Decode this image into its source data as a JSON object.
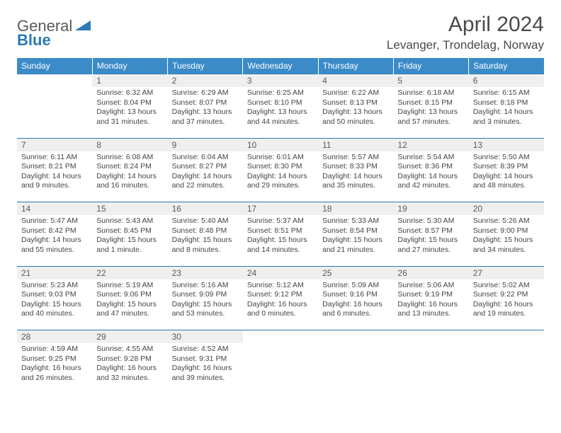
{
  "brand": {
    "text1": "General",
    "text2": "Blue",
    "triangle_color": "#2a7ab8"
  },
  "header": {
    "title": "April 2024",
    "location": "Levanger, Trondelag, Norway"
  },
  "colors": {
    "header_bg": "#3b8bc9",
    "border": "#2a7ab8",
    "daynum_bg": "#efefef"
  },
  "weekdays": [
    "Sunday",
    "Monday",
    "Tuesday",
    "Wednesday",
    "Thursday",
    "Friday",
    "Saturday"
  ],
  "weeks": [
    {
      "nums": [
        "",
        "1",
        "2",
        "3",
        "4",
        "5",
        "6"
      ],
      "cells": [
        null,
        {
          "sunrise": "6:32 AM",
          "sunset": "8:04 PM",
          "daylight": "13 hours and 31 minutes."
        },
        {
          "sunrise": "6:29 AM",
          "sunset": "8:07 PM",
          "daylight": "13 hours and 37 minutes."
        },
        {
          "sunrise": "6:25 AM",
          "sunset": "8:10 PM",
          "daylight": "13 hours and 44 minutes."
        },
        {
          "sunrise": "6:22 AM",
          "sunset": "8:13 PM",
          "daylight": "13 hours and 50 minutes."
        },
        {
          "sunrise": "6:18 AM",
          "sunset": "8:15 PM",
          "daylight": "13 hours and 57 minutes."
        },
        {
          "sunrise": "6:15 AM",
          "sunset": "8:18 PM",
          "daylight": "14 hours and 3 minutes."
        }
      ]
    },
    {
      "nums": [
        "7",
        "8",
        "9",
        "10",
        "11",
        "12",
        "13"
      ],
      "cells": [
        {
          "sunrise": "6:11 AM",
          "sunset": "8:21 PM",
          "daylight": "14 hours and 9 minutes."
        },
        {
          "sunrise": "6:08 AM",
          "sunset": "8:24 PM",
          "daylight": "14 hours and 16 minutes."
        },
        {
          "sunrise": "6:04 AM",
          "sunset": "8:27 PM",
          "daylight": "14 hours and 22 minutes."
        },
        {
          "sunrise": "6:01 AM",
          "sunset": "8:30 PM",
          "daylight": "14 hours and 29 minutes."
        },
        {
          "sunrise": "5:57 AM",
          "sunset": "8:33 PM",
          "daylight": "14 hours and 35 minutes."
        },
        {
          "sunrise": "5:54 AM",
          "sunset": "8:36 PM",
          "daylight": "14 hours and 42 minutes."
        },
        {
          "sunrise": "5:50 AM",
          "sunset": "8:39 PM",
          "daylight": "14 hours and 48 minutes."
        }
      ]
    },
    {
      "nums": [
        "14",
        "15",
        "16",
        "17",
        "18",
        "19",
        "20"
      ],
      "cells": [
        {
          "sunrise": "5:47 AM",
          "sunset": "8:42 PM",
          "daylight": "14 hours and 55 minutes."
        },
        {
          "sunrise": "5:43 AM",
          "sunset": "8:45 PM",
          "daylight": "15 hours and 1 minute."
        },
        {
          "sunrise": "5:40 AM",
          "sunset": "8:48 PM",
          "daylight": "15 hours and 8 minutes."
        },
        {
          "sunrise": "5:37 AM",
          "sunset": "8:51 PM",
          "daylight": "15 hours and 14 minutes."
        },
        {
          "sunrise": "5:33 AM",
          "sunset": "8:54 PM",
          "daylight": "15 hours and 21 minutes."
        },
        {
          "sunrise": "5:30 AM",
          "sunset": "8:57 PM",
          "daylight": "15 hours and 27 minutes."
        },
        {
          "sunrise": "5:26 AM",
          "sunset": "9:00 PM",
          "daylight": "15 hours and 34 minutes."
        }
      ]
    },
    {
      "nums": [
        "21",
        "22",
        "23",
        "24",
        "25",
        "26",
        "27"
      ],
      "cells": [
        {
          "sunrise": "5:23 AM",
          "sunset": "9:03 PM",
          "daylight": "15 hours and 40 minutes."
        },
        {
          "sunrise": "5:19 AM",
          "sunset": "9:06 PM",
          "daylight": "15 hours and 47 minutes."
        },
        {
          "sunrise": "5:16 AM",
          "sunset": "9:09 PM",
          "daylight": "15 hours and 53 minutes."
        },
        {
          "sunrise": "5:12 AM",
          "sunset": "9:12 PM",
          "daylight": "16 hours and 0 minutes."
        },
        {
          "sunrise": "5:09 AM",
          "sunset": "9:16 PM",
          "daylight": "16 hours and 6 minutes."
        },
        {
          "sunrise": "5:06 AM",
          "sunset": "9:19 PM",
          "daylight": "16 hours and 13 minutes."
        },
        {
          "sunrise": "5:02 AM",
          "sunset": "9:22 PM",
          "daylight": "16 hours and 19 minutes."
        }
      ]
    },
    {
      "nums": [
        "28",
        "29",
        "30",
        "",
        "",
        "",
        ""
      ],
      "cells": [
        {
          "sunrise": "4:59 AM",
          "sunset": "9:25 PM",
          "daylight": "16 hours and 26 minutes."
        },
        {
          "sunrise": "4:55 AM",
          "sunset": "9:28 PM",
          "daylight": "16 hours and 32 minutes."
        },
        {
          "sunrise": "4:52 AM",
          "sunset": "9:31 PM",
          "daylight": "16 hours and 39 minutes."
        },
        null,
        null,
        null,
        null
      ]
    }
  ],
  "labels": {
    "sunrise": "Sunrise:",
    "sunset": "Sunset:",
    "daylight": "Daylight:"
  }
}
